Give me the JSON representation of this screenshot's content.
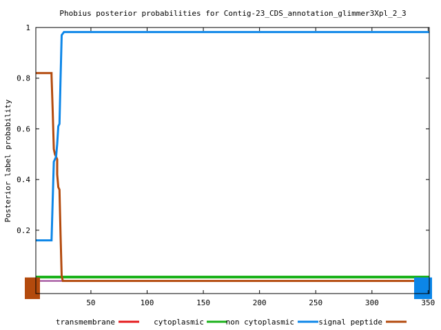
{
  "chart_data": {
    "type": "line",
    "title": "Phobius posterior probabilities for Contig-23_CDS_annotation_glimmer3Xpl_2_3",
    "xlabel": "",
    "ylabel": "Posterior label probability",
    "xlim": [
      1,
      351
    ],
    "ylim": [
      -0.05,
      1.0
    ],
    "x_ticks": [
      50,
      100,
      150,
      200,
      250,
      300,
      350
    ],
    "x_tick_labels": [
      "50",
      "100",
      "150",
      "200",
      "250",
      "300",
      "350"
    ],
    "y_ticks": [
      0.2,
      0.4,
      0.6,
      0.8,
      1.0
    ],
    "y_tick_labels": [
      "0.2",
      "0.4",
      "0.6",
      "0.8",
      "1"
    ],
    "grid": false,
    "legend_position": "bottom",
    "series": [
      {
        "name": "transmembrane",
        "color": "#e41a1c",
        "width": 2,
        "points": [
          [
            1,
            0.0
          ],
          [
            351,
            0.0
          ]
        ]
      },
      {
        "name": "cytoplasmic",
        "color": "#984ea3",
        "width": 2,
        "points": [
          [
            1,
            0.0
          ],
          [
            351,
            0.0
          ]
        ]
      },
      {
        "name": "non cytoplasmic",
        "color": "#1ab21a",
        "width": 4,
        "points": [
          [
            1,
            0.015
          ],
          [
            351,
            0.015
          ]
        ]
      },
      {
        "name": "signal peptide",
        "color": "#b34a0d",
        "width": 3,
        "points": [
          [
            1,
            0.82
          ],
          [
            15,
            0.82
          ],
          [
            15,
            0.81
          ],
          [
            16,
            0.67
          ],
          [
            17,
            0.52
          ],
          [
            18,
            0.5
          ],
          [
            19,
            0.49
          ],
          [
            20,
            0.48
          ],
          [
            20,
            0.42
          ],
          [
            21,
            0.37
          ],
          [
            22,
            0.36
          ],
          [
            23,
            0.18
          ],
          [
            24,
            0.02
          ],
          [
            25,
            0.0
          ],
          [
            351,
            0.0
          ]
        ]
      },
      {
        "name": "",
        "color": "#0c86e8",
        "width": 3,
        "points": [
          [
            1,
            0.16
          ],
          [
            15,
            0.16
          ],
          [
            16,
            0.32
          ],
          [
            17,
            0.47
          ],
          [
            18,
            0.48
          ],
          [
            19,
            0.49
          ],
          [
            20,
            0.54
          ],
          [
            21,
            0.61
          ],
          [
            22,
            0.62
          ],
          [
            23,
            0.8
          ],
          [
            24,
            0.97
          ],
          [
            26,
            0.982
          ],
          [
            351,
            0.982
          ]
        ]
      }
    ],
    "legend": [
      {
        "label": "transmembrane",
        "color": "#e41a1c"
      },
      {
        "label": "cytoplasmic",
        "color": "#1ab21a"
      },
      {
        "label": "non cytoplasmic",
        "color": "#0c86e8"
      },
      {
        "label": "signal peptide",
        "color": "#b34a0d"
      }
    ]
  }
}
